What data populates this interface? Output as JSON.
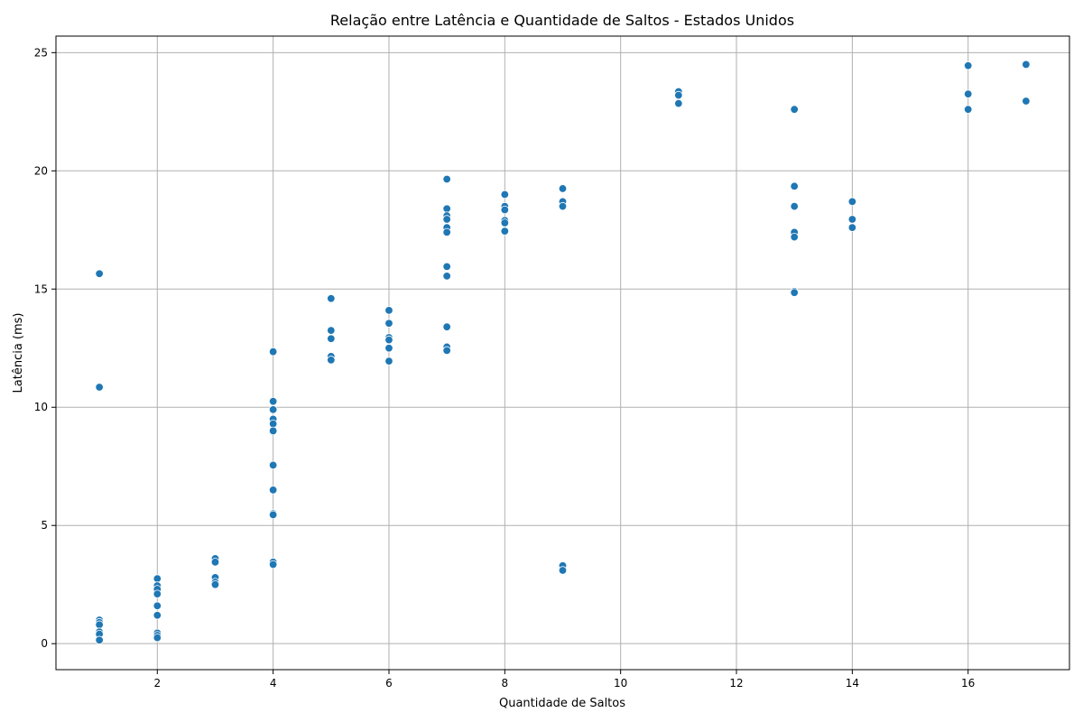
{
  "chart_data": {
    "type": "scatter",
    "title": "Relação entre Latência e Quantidade de Saltos - Estados Unidos",
    "xlabel": "Quantidade de Saltos",
    "ylabel": "Latência (ms)",
    "xlim": [
      0.25,
      17.75
    ],
    "ylim": [
      -1.1,
      25.7
    ],
    "xticks": [
      2,
      4,
      6,
      8,
      10,
      12,
      14,
      16
    ],
    "yticks": [
      0,
      5,
      10,
      15,
      20,
      25
    ],
    "grid": true,
    "color": "#1f77b4",
    "points": [
      [
        1,
        15.65
      ],
      [
        1,
        10.85
      ],
      [
        1,
        1.0
      ],
      [
        1,
        0.9
      ],
      [
        1,
        0.8
      ],
      [
        1,
        0.5
      ],
      [
        1,
        0.4
      ],
      [
        1,
        0.15
      ],
      [
        2,
        2.75
      ],
      [
        2,
        2.45
      ],
      [
        2,
        2.3
      ],
      [
        2,
        2.1
      ],
      [
        2,
        1.6
      ],
      [
        2,
        1.2
      ],
      [
        2,
        0.45
      ],
      [
        2,
        0.35
      ],
      [
        2,
        0.25
      ],
      [
        3,
        3.6
      ],
      [
        3,
        3.45
      ],
      [
        3,
        2.8
      ],
      [
        3,
        2.6
      ],
      [
        3,
        2.5
      ],
      [
        4,
        12.35
      ],
      [
        4,
        10.25
      ],
      [
        4,
        9.9
      ],
      [
        4,
        9.5
      ],
      [
        4,
        9.3
      ],
      [
        4,
        9.0
      ],
      [
        4,
        7.55
      ],
      [
        4,
        6.5
      ],
      [
        4,
        5.5
      ],
      [
        4,
        5.45
      ],
      [
        4,
        3.45
      ],
      [
        4,
        3.35
      ],
      [
        5,
        14.6
      ],
      [
        5,
        13.25
      ],
      [
        5,
        12.9
      ],
      [
        5,
        12.15
      ],
      [
        5,
        12.0
      ],
      [
        6,
        14.1
      ],
      [
        6,
        13.55
      ],
      [
        6,
        12.95
      ],
      [
        6,
        12.85
      ],
      [
        6,
        12.5
      ],
      [
        6,
        11.95
      ],
      [
        7,
        19.65
      ],
      [
        7,
        18.4
      ],
      [
        7,
        18.1
      ],
      [
        7,
        17.95
      ],
      [
        7,
        17.6
      ],
      [
        7,
        17.4
      ],
      [
        7,
        15.95
      ],
      [
        7,
        15.55
      ],
      [
        7,
        13.4
      ],
      [
        7,
        12.55
      ],
      [
        7,
        12.4
      ],
      [
        8,
        19.0
      ],
      [
        8,
        18.5
      ],
      [
        8,
        18.35
      ],
      [
        8,
        17.9
      ],
      [
        8,
        17.8
      ],
      [
        8,
        17.45
      ],
      [
        9,
        19.25
      ],
      [
        9,
        18.7
      ],
      [
        9,
        18.5
      ],
      [
        9,
        3.3
      ],
      [
        9,
        3.1
      ],
      [
        11,
        23.35
      ],
      [
        11,
        23.2
      ],
      [
        11,
        22.85
      ],
      [
        13,
        22.6
      ],
      [
        13,
        19.35
      ],
      [
        13,
        18.5
      ],
      [
        13,
        17.4
      ],
      [
        13,
        17.2
      ],
      [
        13,
        14.9
      ],
      [
        13,
        14.85
      ],
      [
        14,
        18.7
      ],
      [
        14,
        17.95
      ],
      [
        14,
        17.6
      ],
      [
        16,
        24.45
      ],
      [
        16,
        23.25
      ],
      [
        16,
        22.6
      ],
      [
        17,
        24.5
      ],
      [
        17,
        22.95
      ]
    ]
  }
}
